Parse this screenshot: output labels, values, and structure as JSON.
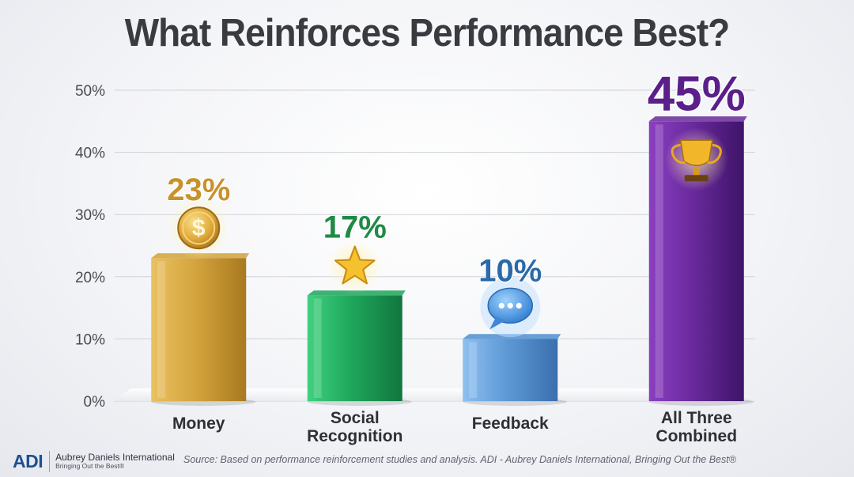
{
  "chart_data": {
    "type": "bar",
    "title": "What Reinforces Performance Best?",
    "categories": [
      [
        "Money"
      ],
      [
        "Social",
        "Recognition"
      ],
      [
        "Feedback"
      ],
      [
        "All Three",
        "Combined"
      ]
    ],
    "values": [
      23,
      17,
      10,
      45
    ],
    "value_labels": [
      "23%",
      "17%",
      "10%",
      "45%"
    ],
    "icons": [
      "dollar-coin-icon",
      "star-icon",
      "chat-bubble-icon",
      "trophy-icon"
    ],
    "colors": [
      "#d2a23a",
      "#1fa45a",
      "#4f8fd0",
      "#6a2a9a"
    ],
    "label_colors": [
      "#c8922a",
      "#1f8a45",
      "#2a6aa8",
      "#5a1f8a"
    ],
    "ylim": [
      0,
      50
    ],
    "yticks": [
      0,
      10,
      20,
      30,
      40,
      50
    ],
    "ytick_labels": [
      "0%",
      "10%",
      "20%",
      "30%",
      "40%",
      "50%"
    ],
    "grid": true
  },
  "footer": {
    "logo": "ADI",
    "company": "Aubrey Daniels International",
    "tagline": "Bringing Out the Best®",
    "source": "Source: Based on performance reinforcement studies and analysis. ADI - Aubrey Daniels International, Bringing Out the Best®"
  }
}
